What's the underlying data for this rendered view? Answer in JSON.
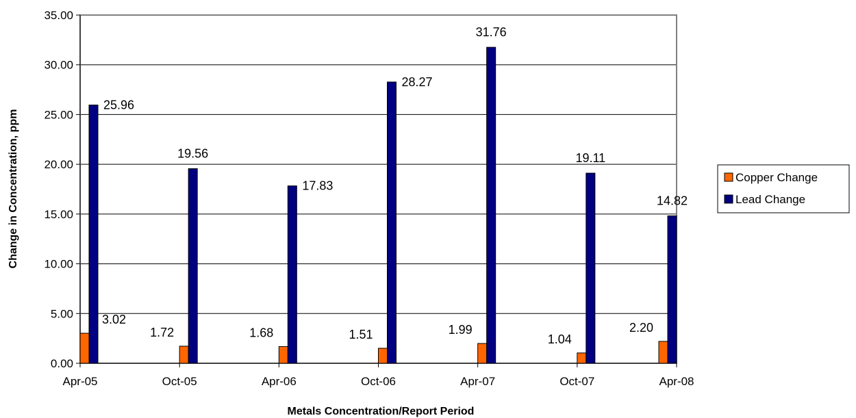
{
  "chart_data": {
    "type": "bar",
    "title": "",
    "xlabel": "Metals Concentration/Report Period",
    "ylabel": "Change in Concentration, ppm",
    "categories": [
      "Apr-05",
      "Oct-05",
      "Apr-06",
      "Oct-06",
      "Apr-07",
      "Oct-07",
      "Apr-08"
    ],
    "series": [
      {
        "name": "Copper Change",
        "color": "#FF6600",
        "values": [
          3.02,
          1.72,
          1.68,
          1.51,
          1.99,
          1.04,
          2.2
        ],
        "labels": [
          "3.02",
          "1.72",
          "1.68",
          "1.51",
          "1.99",
          "1.04",
          "2.20"
        ]
      },
      {
        "name": "Lead Change",
        "color": "#000080",
        "values": [
          25.96,
          19.56,
          17.83,
          28.27,
          31.76,
          19.11,
          14.82
        ],
        "labels": [
          "25.96",
          "19.56",
          "17.83",
          "28.27",
          "31.76",
          "19.11",
          "14.82"
        ]
      }
    ],
    "ylim": [
      0,
      35
    ],
    "yticks": [
      "0.00",
      "5.00",
      "10.00",
      "15.00",
      "20.00",
      "25.00",
      "30.00",
      "35.00"
    ],
    "grid": true,
    "legend_position": "right"
  }
}
